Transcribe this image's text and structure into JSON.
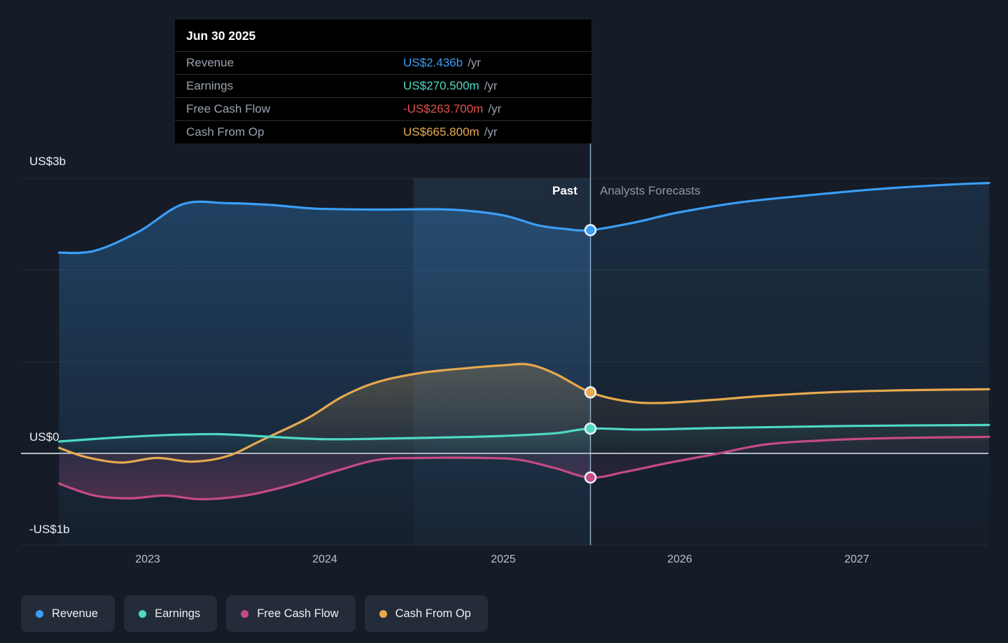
{
  "tooltip": {
    "date": "Jun 30 2025",
    "rows": [
      {
        "label": "Revenue",
        "value": "US$2.436b",
        "suffix": "/yr",
        "color": "#3b9ef7"
      },
      {
        "label": "Earnings",
        "value": "US$270.500m",
        "suffix": "/yr",
        "color": "#4fd8c4"
      },
      {
        "label": "Free Cash Flow",
        "value": "-US$263.700m",
        "suffix": "/yr",
        "color": "#e2524f"
      },
      {
        "label": "Cash From Op",
        "value": "US$665.800m",
        "suffix": "/yr",
        "color": "#e7a94e"
      }
    ]
  },
  "axis": {
    "y_labels": [
      {
        "text": "US$3b"
      },
      {
        "text": "US$0"
      },
      {
        "text": "-US$1b"
      }
    ],
    "x_labels": [
      "2023",
      "2024",
      "2025",
      "2026",
      "2027"
    ]
  },
  "annotations": {
    "past_label": "Past",
    "forecast_label": "Analysts Forecasts"
  },
  "legend": [
    {
      "label": "Revenue",
      "color": "#3b9ef7"
    },
    {
      "label": "Earnings",
      "color": "#4fd8c4"
    },
    {
      "label": "Free Cash Flow",
      "color": "#c64a86"
    },
    {
      "label": "Cash From Op",
      "color": "#e7a94e"
    }
  ],
  "chart_data": {
    "type": "line",
    "x_unit": "calendar year (decimal)",
    "y_unit": "US$ billions per year",
    "xlim": [
      2022.5,
      2027.75
    ],
    "ylim": [
      -1,
      3
    ],
    "grid_values": [
      3,
      2,
      1,
      0,
      -1
    ],
    "divider_x": 2025.5,
    "divider_date": "Jun 30 2025",
    "highlight_band": [
      2024.5,
      2025.5
    ],
    "legend_position": "bottom-left",
    "series": [
      {
        "name": "Revenue",
        "color": "#3b9ef7",
        "marker_value": 2.436,
        "fill_to": "bottom",
        "fill_opacity": [
          0.3,
          0.03
        ],
        "points": [
          [
            2022.5,
            2.19
          ],
          [
            2022.7,
            2.21
          ],
          [
            2022.95,
            2.42
          ],
          [
            2023.2,
            2.72
          ],
          [
            2023.45,
            2.73
          ],
          [
            2023.7,
            2.71
          ],
          [
            2023.95,
            2.67
          ],
          [
            2024.3,
            2.66
          ],
          [
            2024.7,
            2.66
          ],
          [
            2025.0,
            2.6
          ],
          [
            2025.2,
            2.49
          ],
          [
            2025.35,
            2.45
          ],
          [
            2025.5,
            2.436
          ],
          [
            2025.75,
            2.52
          ],
          [
            2026.0,
            2.63
          ],
          [
            2026.35,
            2.74
          ],
          [
            2026.7,
            2.81
          ],
          [
            2027.1,
            2.88
          ],
          [
            2027.5,
            2.93
          ],
          [
            2027.75,
            2.95
          ]
        ]
      },
      {
        "name": "Cash From Op",
        "color": "#e7a94e",
        "marker_value": 0.6658,
        "fill_to": "zero",
        "fill_opacity": [
          0.26,
          0.02
        ],
        "points": [
          [
            2022.5,
            0.06
          ],
          [
            2022.65,
            -0.04
          ],
          [
            2022.85,
            -0.1
          ],
          [
            2023.05,
            -0.05
          ],
          [
            2023.25,
            -0.09
          ],
          [
            2023.45,
            -0.03
          ],
          [
            2023.65,
            0.15
          ],
          [
            2023.9,
            0.38
          ],
          [
            2024.1,
            0.62
          ],
          [
            2024.3,
            0.78
          ],
          [
            2024.55,
            0.88
          ],
          [
            2024.8,
            0.93
          ],
          [
            2025.0,
            0.96
          ],
          [
            2025.15,
            0.97
          ],
          [
            2025.3,
            0.87
          ],
          [
            2025.5,
            0.6658
          ],
          [
            2025.7,
            0.57
          ],
          [
            2025.9,
            0.55
          ],
          [
            2026.2,
            0.585
          ],
          [
            2026.5,
            0.63
          ],
          [
            2026.9,
            0.67
          ],
          [
            2027.3,
            0.69
          ],
          [
            2027.75,
            0.7
          ]
        ]
      },
      {
        "name": "Free Cash Flow",
        "color": "#c64a86",
        "marker_value": -0.2637,
        "fill_to": "zero",
        "fill_opacity": [
          0.06,
          0.3
        ],
        "points": [
          [
            2022.5,
            -0.33
          ],
          [
            2022.7,
            -0.46
          ],
          [
            2022.9,
            -0.49
          ],
          [
            2023.1,
            -0.46
          ],
          [
            2023.3,
            -0.5
          ],
          [
            2023.55,
            -0.46
          ],
          [
            2023.8,
            -0.35
          ],
          [
            2024.05,
            -0.2
          ],
          [
            2024.3,
            -0.07
          ],
          [
            2024.55,
            -0.05
          ],
          [
            2024.9,
            -0.05
          ],
          [
            2025.1,
            -0.07
          ],
          [
            2025.3,
            -0.16
          ],
          [
            2025.5,
            -0.2637
          ],
          [
            2025.7,
            -0.2
          ],
          [
            2025.95,
            -0.1
          ],
          [
            2026.2,
            -0.01
          ],
          [
            2026.5,
            0.1
          ],
          [
            2026.9,
            0.15
          ],
          [
            2027.3,
            0.17
          ],
          [
            2027.75,
            0.18
          ]
        ]
      },
      {
        "name": "Earnings",
        "color": "#4fd8c4",
        "marker_value": 0.2705,
        "fill_to": "zero",
        "fill_opacity": [
          0.16,
          0.02
        ],
        "points": [
          [
            2022.5,
            0.13
          ],
          [
            2022.8,
            0.17
          ],
          [
            2023.1,
            0.2
          ],
          [
            2023.4,
            0.21
          ],
          [
            2023.7,
            0.18
          ],
          [
            2024.0,
            0.155
          ],
          [
            2024.3,
            0.16
          ],
          [
            2024.7,
            0.175
          ],
          [
            2025.0,
            0.19
          ],
          [
            2025.3,
            0.22
          ],
          [
            2025.5,
            0.2705
          ],
          [
            2025.8,
            0.26
          ],
          [
            2026.3,
            0.28
          ],
          [
            2027.0,
            0.3
          ],
          [
            2027.75,
            0.31
          ]
        ]
      }
    ]
  }
}
